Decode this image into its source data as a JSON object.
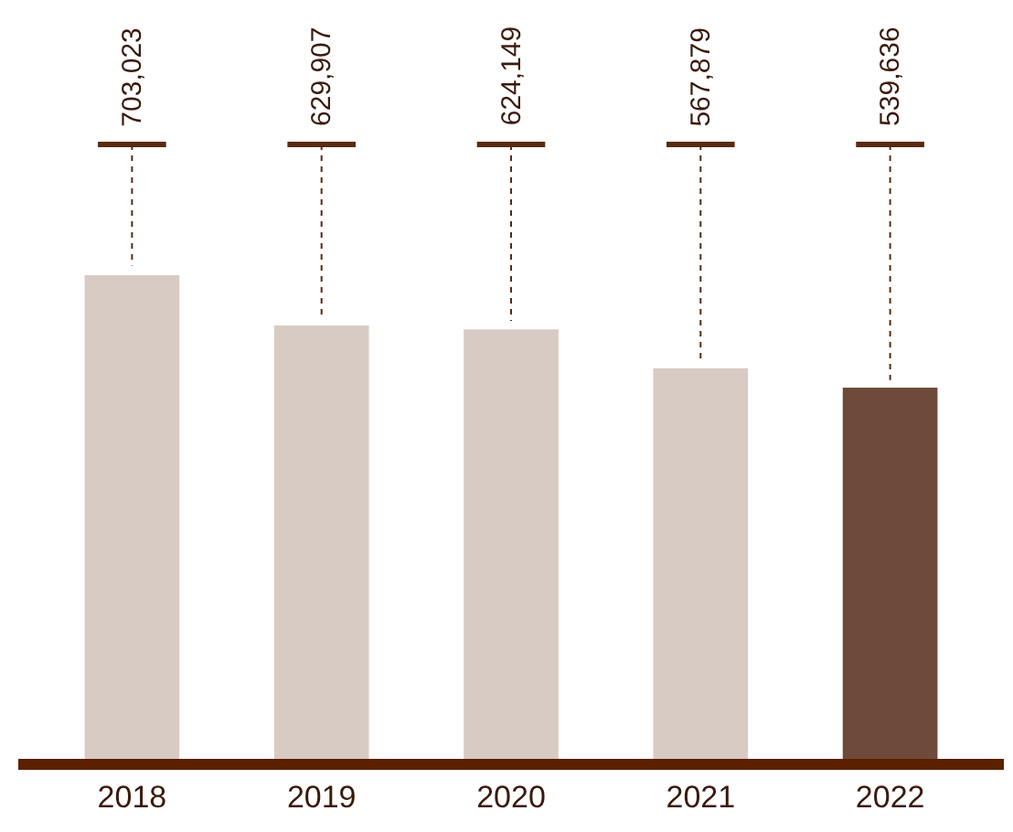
{
  "chart_data": {
    "type": "bar",
    "categories": [
      "2018",
      "2019",
      "2020",
      "2021",
      "2022"
    ],
    "values": [
      703023,
      629907,
      624149,
      567879,
      539636
    ],
    "colors": [
      "#d8cbc3",
      "#d8cbc3",
      "#d8cbc3",
      "#d8cbc3",
      "#6e4a3b"
    ],
    "value_labels": [
      "703,023",
      "629,907",
      "624,149",
      "567,879",
      "539,636"
    ],
    "tick_labels": "x",
    "legend": false
  }
}
